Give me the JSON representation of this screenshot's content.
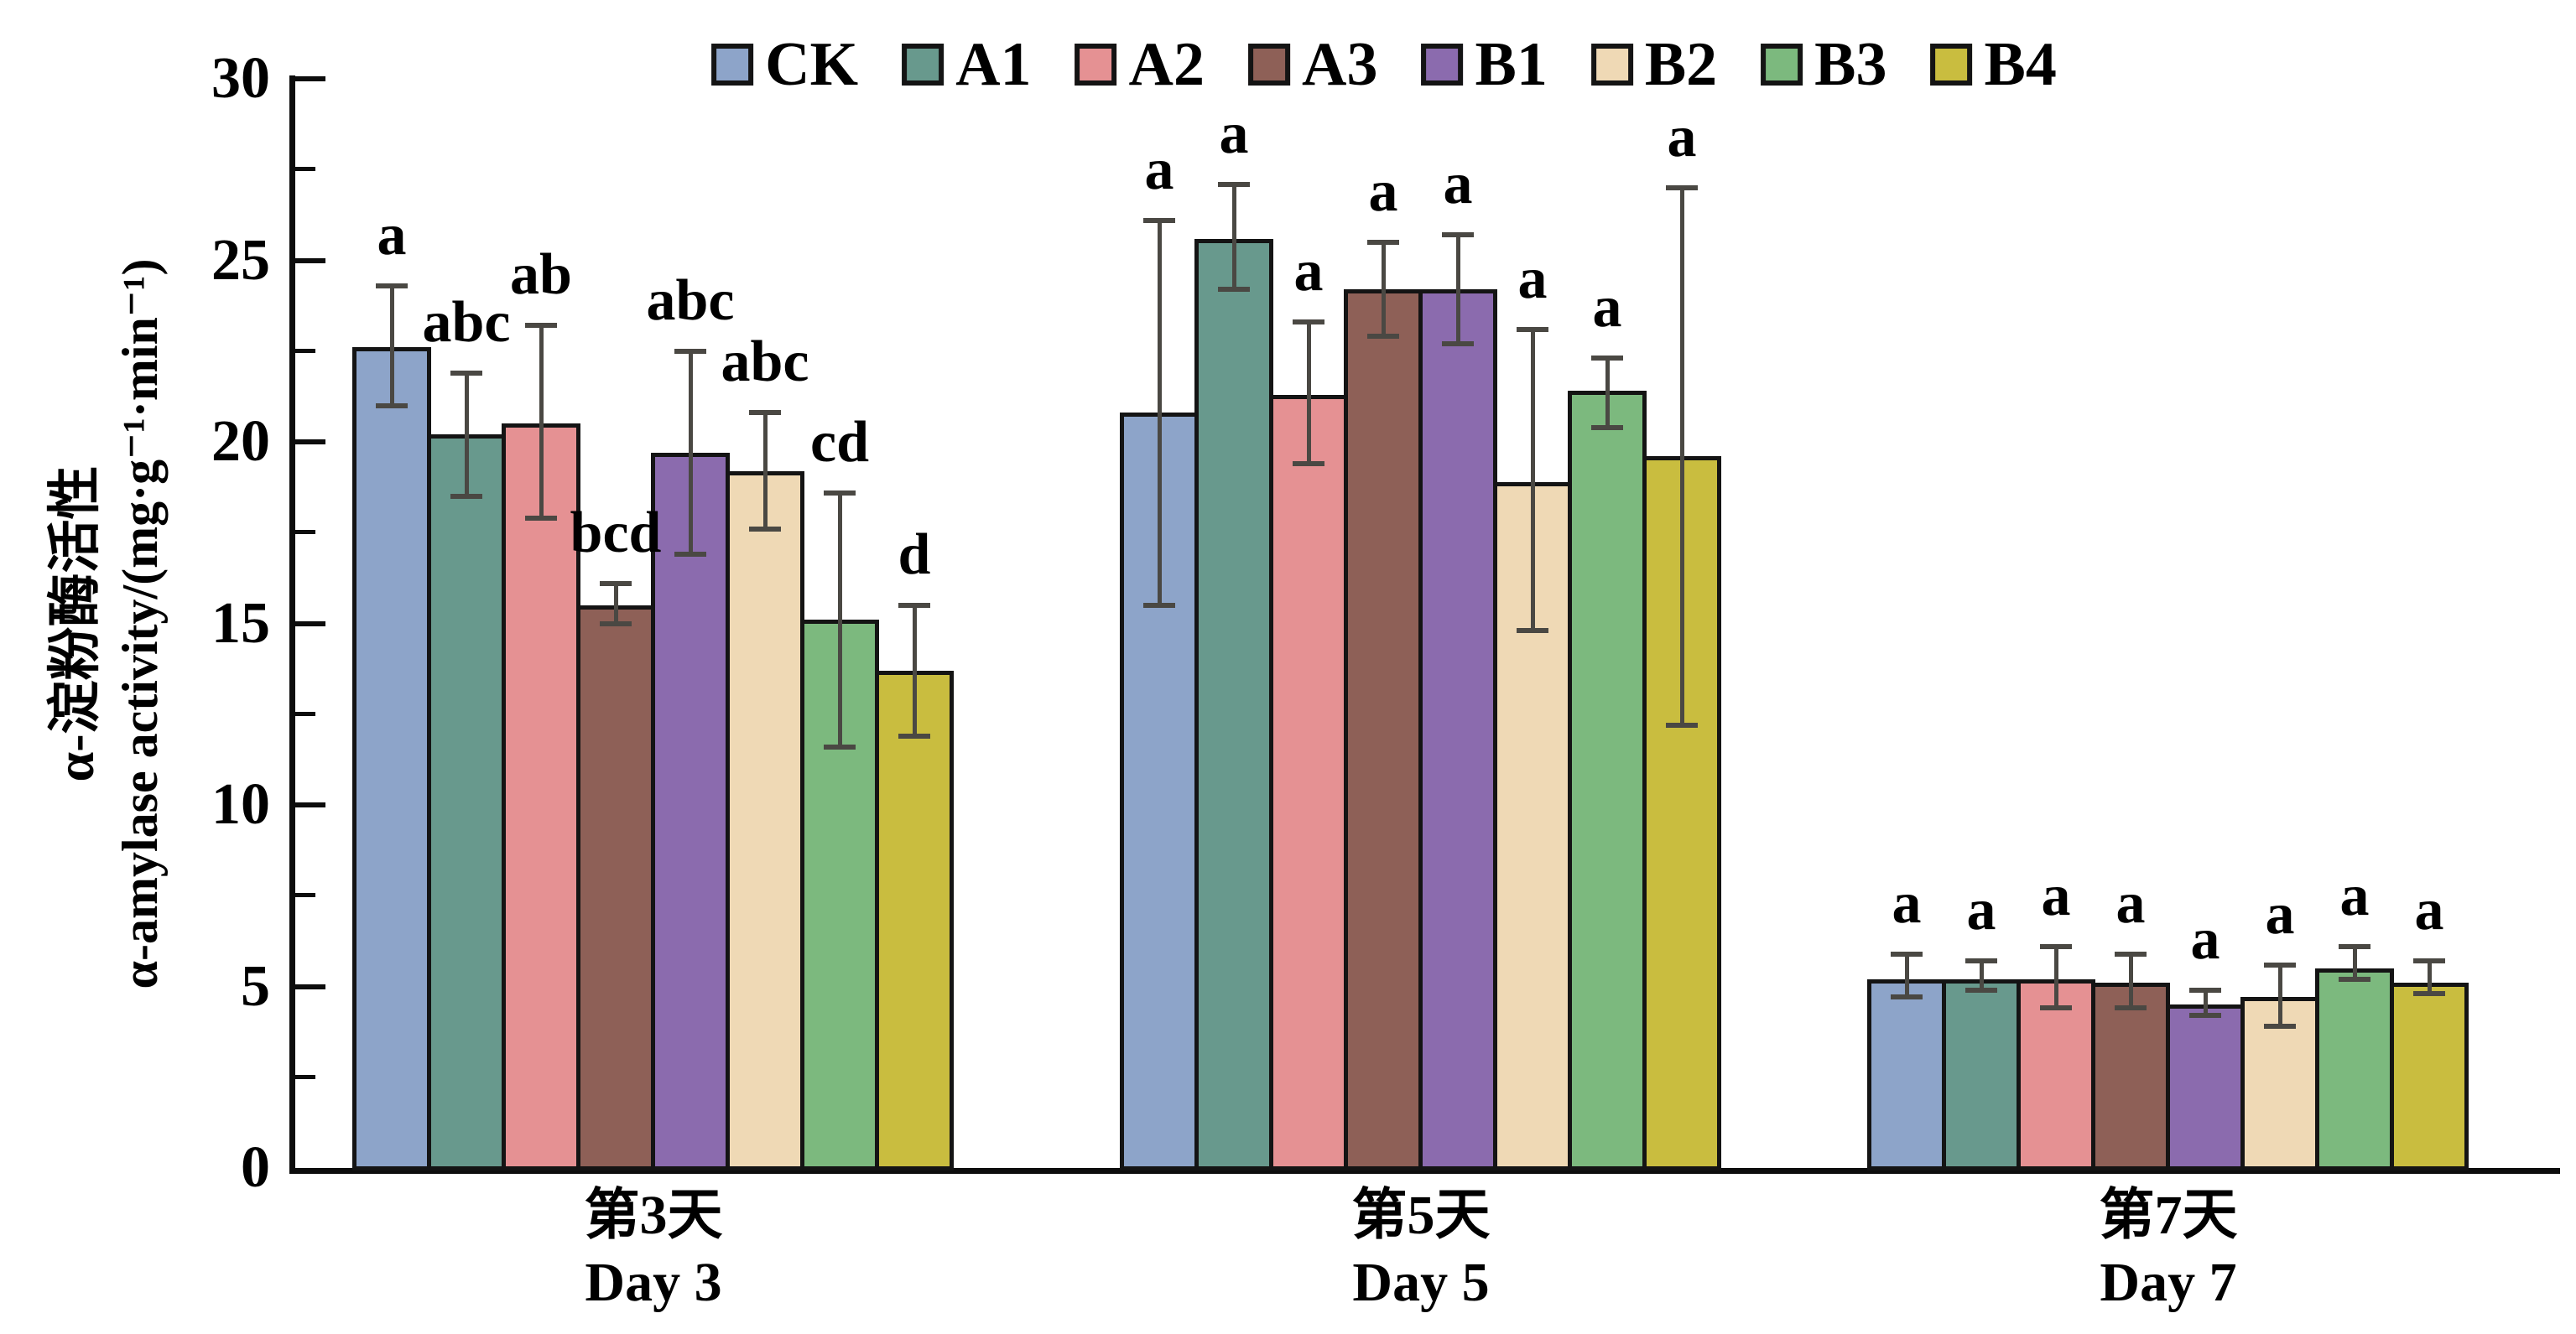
{
  "chart_data": {
    "type": "bar",
    "title": "",
    "ylabel_zh": "α-淀粉酶活性",
    "ylabel_en": "α-amylase activity/(mg·g⁻¹·min⁻¹)",
    "ylim": [
      0,
      30
    ],
    "yticks": [
      0,
      5,
      10,
      15,
      20,
      25,
      30
    ],
    "ytick_minor_step": 2.5,
    "grid": false,
    "legend_position": "top-center",
    "error_bar_color": "#4a4843",
    "bar_border_color": "#141414",
    "groups": [
      {
        "label_zh": "第3天",
        "label_en": "Day 3"
      },
      {
        "label_zh": "第5天",
        "label_en": "Day 5"
      },
      {
        "label_zh": "第7天",
        "label_en": "Day 7"
      }
    ],
    "series": [
      {
        "name": "CK",
        "color": "#8da4c9",
        "values": [
          22.6,
          20.8,
          5.2
        ],
        "err_low": [
          21.0,
          15.5,
          4.7
        ],
        "err_high": [
          24.3,
          26.1,
          5.9
        ],
        "letters": [
          "a",
          "a",
          "a"
        ]
      },
      {
        "name": "A1",
        "color": "#68998d",
        "values": [
          20.2,
          25.6,
          5.2
        ],
        "err_low": [
          18.5,
          24.2,
          4.9
        ],
        "err_high": [
          21.9,
          27.1,
          5.7
        ],
        "letters": [
          "abc",
          "a",
          "a"
        ]
      },
      {
        "name": "A2",
        "color": "#e59193",
        "values": [
          20.5,
          21.3,
          5.2
        ],
        "err_low": [
          17.9,
          19.4,
          4.4
        ],
        "err_high": [
          23.2,
          23.3,
          6.1
        ],
        "letters": [
          "ab",
          "a",
          "a"
        ]
      },
      {
        "name": "A3",
        "color": "#8e6057",
        "values": [
          15.5,
          24.2,
          5.1
        ],
        "err_low": [
          15.0,
          22.9,
          4.4
        ],
        "err_high": [
          16.1,
          25.5,
          5.9
        ],
        "letters": [
          "bcd",
          "a",
          "a"
        ]
      },
      {
        "name": "B1",
        "color": "#8b6bae",
        "values": [
          19.7,
          24.2,
          4.5
        ],
        "err_low": [
          16.9,
          22.7,
          4.2
        ],
        "err_high": [
          22.5,
          25.7,
          4.9
        ],
        "letters": [
          "abc",
          "a",
          "a"
        ]
      },
      {
        "name": "B2",
        "color": "#efd9b5",
        "values": [
          19.2,
          18.9,
          4.7
        ],
        "err_low": [
          17.6,
          14.8,
          3.9
        ],
        "err_high": [
          20.8,
          23.1,
          5.6
        ],
        "letters": [
          "abc",
          "a",
          "a"
        ]
      },
      {
        "name": "B3",
        "color": "#7cb97e",
        "values": [
          15.1,
          21.4,
          5.5
        ],
        "err_low": [
          11.6,
          20.4,
          5.2
        ],
        "err_high": [
          18.6,
          22.3,
          6.1
        ],
        "letters": [
          "cd",
          "a",
          "a"
        ]
      },
      {
        "name": "B4",
        "color": "#c9bd3f",
        "values": [
          13.7,
          19.6,
          5.1
        ],
        "err_low": [
          11.9,
          12.2,
          4.8
        ],
        "err_high": [
          15.5,
          27.0,
          5.7
        ],
        "letters": [
          "d",
          "a",
          "a"
        ]
      }
    ]
  }
}
